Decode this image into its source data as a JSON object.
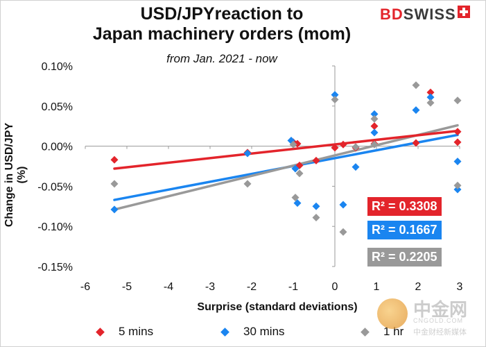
{
  "title_line1": "USD/JPYreaction to",
  "title_line2": "Japan machinery orders (mom)",
  "subtitle": "from Jan. 2021 - now",
  "logo": {
    "bd": "BD",
    "swiss": "SWISS"
  },
  "watermark": {
    "cn": "中金网",
    "en": "CNGOLD.COM",
    "sub": "中金财经新媒体"
  },
  "colors": {
    "red": "#e3242b",
    "blue": "#1a85f0",
    "gray": "#999999"
  },
  "r2": {
    "red": "R² = 0.3308",
    "blue": "R² = 0.1667",
    "gray": "R² = 0.2205"
  },
  "legend": {
    "red": "5 mins",
    "blue": "30 mins",
    "gray": "1 hr"
  },
  "chart_data": {
    "type": "scatter",
    "xlabel": "Surprise (standard deviations)",
    "ylabel": "Change in USD/JPY  (%)",
    "xlim": [
      -6,
      3
    ],
    "ylim": [
      -0.15,
      0.1
    ],
    "x_ticks": [
      "-6",
      "-5",
      "-4",
      "-3",
      "-2",
      "-1",
      "0",
      "1",
      "2",
      "3"
    ],
    "y_ticks": [
      "0.10%",
      "0.05%",
      "0.00%",
      "-0.05%",
      "-0.10%",
      "-0.15%"
    ],
    "grid": false,
    "legend_position": "bottom",
    "series": [
      {
        "name": "5 mins",
        "color": "#e3242b",
        "trendline": {
          "r2": 0.3308,
          "x": [
            -5.3,
            2.95
          ],
          "y": [
            -0.028,
            0.019
          ]
        },
        "points": [
          [
            -5.3,
            -0.017
          ],
          [
            -2.1,
            -0.008
          ],
          [
            -1.0,
            0.005
          ],
          [
            -0.9,
            0.003
          ],
          [
            -0.85,
            -0.024
          ],
          [
            -0.45,
            -0.018
          ],
          [
            0.0,
            -0.002
          ],
          [
            0.2,
            0.002
          ],
          [
            0.5,
            -0.002
          ],
          [
            0.95,
            0.025
          ],
          [
            0.95,
            0.003
          ],
          [
            1.95,
            0.004
          ],
          [
            2.3,
            0.067
          ],
          [
            2.95,
            0.018
          ],
          [
            2.95,
            0.005
          ]
        ]
      },
      {
        "name": "30 mins",
        "color": "#1a85f0",
        "trendline": {
          "r2": 0.1667,
          "x": [
            -5.3,
            2.95
          ],
          "y": [
            -0.067,
            0.014
          ]
        },
        "points": [
          [
            -5.3,
            -0.079
          ],
          [
            -2.1,
            -0.009
          ],
          [
            -1.05,
            0.007
          ],
          [
            -0.95,
            -0.028
          ],
          [
            -0.9,
            -0.071
          ],
          [
            -0.45,
            -0.075
          ],
          [
            0.0,
            0.064
          ],
          [
            0.2,
            -0.073
          ],
          [
            0.5,
            -0.026
          ],
          [
            0.95,
            0.04
          ],
          [
            0.95,
            0.017
          ],
          [
            1.95,
            0.045
          ],
          [
            2.3,
            0.061
          ],
          [
            2.95,
            -0.019
          ],
          [
            2.95,
            -0.054
          ]
        ]
      },
      {
        "name": "1 hr",
        "color": "#999999",
        "trendline": {
          "r2": 0.2205,
          "x": [
            -5.3,
            2.95
          ],
          "y": [
            -0.079,
            0.026
          ]
        },
        "points": [
          [
            -5.3,
            -0.047
          ],
          [
            -2.1,
            -0.047
          ],
          [
            -1.0,
            0.002
          ],
          [
            -0.95,
            -0.064
          ],
          [
            -0.85,
            -0.034
          ],
          [
            -0.45,
            -0.089
          ],
          [
            0.0,
            0.058
          ],
          [
            0.2,
            -0.107
          ],
          [
            0.5,
            -0.001
          ],
          [
            0.95,
            0.034
          ],
          [
            0.95,
            0.002
          ],
          [
            1.95,
            0.076
          ],
          [
            2.3,
            0.054
          ],
          [
            2.95,
            0.057
          ],
          [
            2.95,
            -0.049
          ]
        ]
      }
    ]
  }
}
